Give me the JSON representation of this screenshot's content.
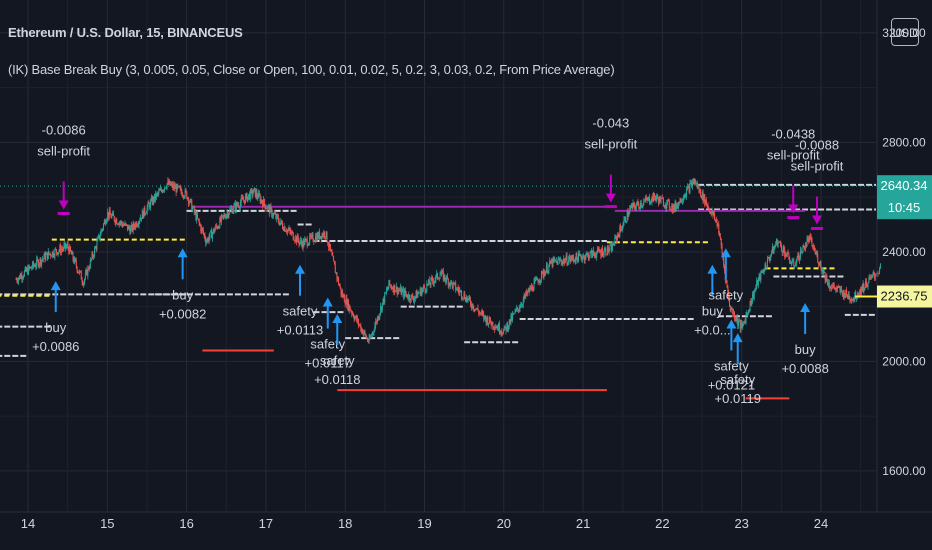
{
  "header": {
    "title": "Ethereum / U.S. Dollar, 15, BINANCEUS",
    "study": "(IK) Base Break Buy (3, 0.005, 0.05, Close or Open, 100, 0.01, 0.02, 5, 0.2, 3, 0.03, 0.2, From Price Average)",
    "currency": "USD"
  },
  "colors": {
    "background": "#131722",
    "grid": "#262b38",
    "up": "#26a69a",
    "down": "#ef5350",
    "buy_marker": "#2196f3",
    "sell_marker": "#c000c0",
    "base_line": "#d1d4dc",
    "avg_line": "#ffeb3b",
    "profit_target": "#9c27b0",
    "stop_line": "#f44336",
    "price_badge": "#26a69a",
    "last_badge": "#f5f5a0"
  },
  "chart_data": {
    "type": "candlestick",
    "x_ticks": [
      "14",
      "15",
      "16",
      "17",
      "18",
      "19",
      "20",
      "21",
      "22",
      "23",
      "24"
    ],
    "y_ticks": [
      "3200.00",
      "2800.00",
      "2400.00",
      "2000.00",
      "1600.00"
    ],
    "ylim": [
      1450,
      3320
    ],
    "price_marker": {
      "value": "2640.34",
      "countdown": "10:45",
      "price": 2640
    },
    "last_price_marker": {
      "value": "2236.75",
      "price": 2237
    },
    "path_days": [
      13.85,
      14.25,
      14.5,
      14.7,
      15.0,
      15.3,
      15.55,
      15.75,
      16.0,
      16.25,
      16.5,
      16.85,
      17.2,
      17.45,
      17.75,
      17.95,
      18.3,
      18.55,
      18.85,
      19.2,
      19.5,
      19.75,
      20.0,
      20.3,
      20.6,
      20.95,
      21.35,
      21.6,
      21.9,
      22.15,
      22.4,
      22.55,
      22.7,
      22.85,
      23.0,
      23.2,
      23.45,
      23.65,
      23.85,
      24.1,
      24.4,
      24.75
    ],
    "path_prices": [
      2300,
      2390,
      2420,
      2290,
      2540,
      2480,
      2580,
      2650,
      2610,
      2440,
      2540,
      2620,
      2500,
      2430,
      2470,
      2250,
      2070,
      2280,
      2230,
      2320,
      2240,
      2160,
      2110,
      2250,
      2360,
      2380,
      2410,
      2560,
      2600,
      2560,
      2660,
      2580,
      2500,
      2200,
      2120,
      2290,
      2440,
      2350,
      2450,
      2280,
      2230,
      2340
    ],
    "signals": [
      {
        "type": "sell",
        "day": 14.45,
        "price": 2555,
        "labels": [
          "-0.0086",
          "sell-profit"
        ]
      },
      {
        "type": "buy",
        "day": 14.35,
        "price": 2180,
        "labels": [
          "buy",
          "+0.0086"
        ]
      },
      {
        "type": "buy",
        "day": 15.95,
        "price": 2300,
        "labels": [
          "buy",
          "+0.0082"
        ]
      },
      {
        "type": "buy",
        "day": 17.43,
        "price": 2240,
        "labels": [
          "safety",
          "+0.0113"
        ]
      },
      {
        "type": "buy",
        "day": 17.78,
        "price": 2120,
        "labels": [
          "safety",
          "+0.0117"
        ]
      },
      {
        "type": "buy",
        "day": 17.9,
        "price": 2060,
        "labels": [
          "safety",
          "+0.0118"
        ]
      },
      {
        "type": "sell",
        "day": 21.35,
        "price": 2580,
        "labels": [
          "-0.043",
          "sell-profit"
        ]
      },
      {
        "type": "buy",
        "day": 22.63,
        "price": 2240,
        "labels": [
          "buy",
          "+0.0..."
        ]
      },
      {
        "type": "buy",
        "day": 22.8,
        "price": 2300,
        "labels": [
          "safety"
        ]
      },
      {
        "type": "buy",
        "day": 22.87,
        "price": 2040,
        "labels": [
          "safety",
          "+0.0121"
        ]
      },
      {
        "type": "buy",
        "day": 22.95,
        "price": 1990,
        "labels": [
          "safety",
          "+0.0119"
        ]
      },
      {
        "type": "sell",
        "day": 23.65,
        "price": 2540,
        "labels": [
          "-0.0438",
          "sell-profit"
        ]
      },
      {
        "type": "sell",
        "day": 23.95,
        "price": 2500,
        "labels": [
          "-0.0088",
          "sell-profit"
        ]
      },
      {
        "type": "buy",
        "day": 23.8,
        "price": 2100,
        "labels": [
          "buy",
          "+0.0088"
        ]
      }
    ],
    "white_lines": [
      {
        "from": 13.6,
        "to": 14.3,
        "price": 2127
      },
      {
        "from": 13.6,
        "to": 14.0,
        "price": 2020
      },
      {
        "from": 13.6,
        "to": 16.0,
        "price": 2245
      },
      {
        "from": 15.6,
        "to": 17.3,
        "price": 2245
      },
      {
        "from": 16.0,
        "to": 17.4,
        "price": 2550
      },
      {
        "from": 17.4,
        "to": 17.6,
        "price": 2500
      },
      {
        "from": 17.6,
        "to": 21.3,
        "price": 2440
      },
      {
        "from": 17.6,
        "to": 18.0,
        "price": 2180
      },
      {
        "from": 18.0,
        "to": 18.7,
        "price": 2085
      },
      {
        "from": 18.7,
        "to": 19.5,
        "price": 2200
      },
      {
        "from": 19.5,
        "to": 20.2,
        "price": 2070
      },
      {
        "from": 20.2,
        "to": 22.4,
        "price": 2155
      },
      {
        "from": 22.45,
        "to": 24.9,
        "price": 2645
      },
      {
        "from": 22.45,
        "to": 24.9,
        "price": 2555
      },
      {
        "from": 22.7,
        "to": 23.4,
        "price": 2165
      },
      {
        "from": 23.4,
        "to": 24.3,
        "price": 2310
      },
      {
        "from": 24.3,
        "to": 24.9,
        "price": 2170
      }
    ],
    "yellow_lines": [
      {
        "from": 13.6,
        "to": 14.3,
        "price": 2240
      },
      {
        "from": 14.3,
        "to": 16.0,
        "price": 2445
      },
      {
        "from": 21.3,
        "to": 22.6,
        "price": 2435
      },
      {
        "from": 23.3,
        "to": 24.2,
        "price": 2340
      }
    ],
    "purple_lines": [
      {
        "from": 16.1,
        "to": 21.4,
        "price": 2565
      },
      {
        "from": 21.4,
        "to": 23.8,
        "price": 2550
      }
    ],
    "red_lines": [
      {
        "from": 16.2,
        "to": 17.1,
        "price": 2040
      },
      {
        "from": 17.9,
        "to": 21.3,
        "price": 1895
      },
      {
        "from": 23.05,
        "to": 23.6,
        "price": 1865
      }
    ]
  }
}
